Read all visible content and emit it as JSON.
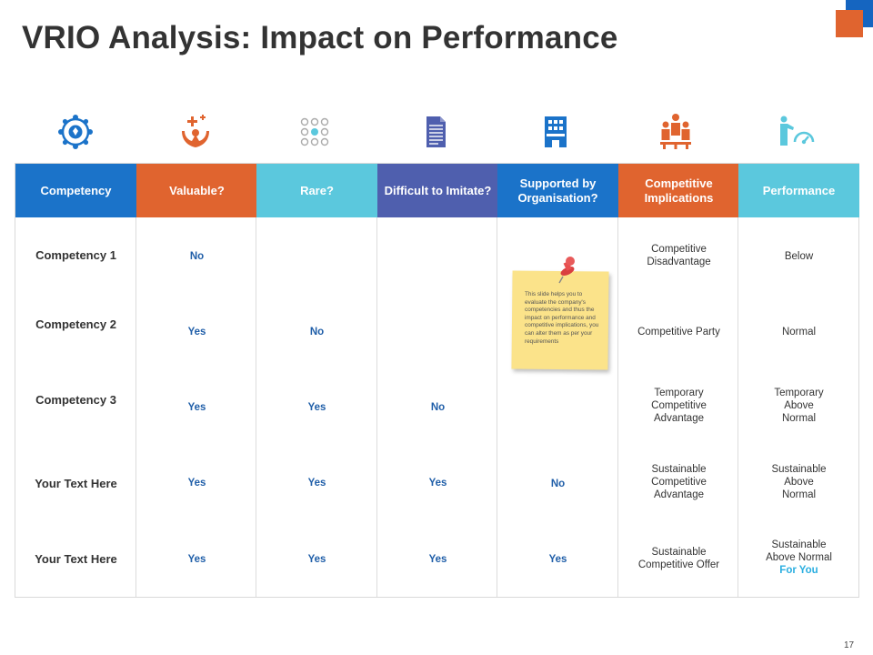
{
  "title": "VRIO Analysis: Impact on Performance",
  "page_number": "17",
  "colors": {
    "blue": "#1b73c9",
    "orange": "#e0642f",
    "cyan": "#5bc8dd",
    "indigo": "#4f5fae",
    "value_text": "#1f5ea8",
    "highlight_text": "#2aaee0"
  },
  "icons": [
    "badge-network-icon",
    "helping-hands-icon",
    "dot-grid-icon",
    "document-icon",
    "building-icon",
    "team-icon",
    "performance-gauge-icon"
  ],
  "headers": [
    {
      "label": "Competency",
      "color": "#1b73c9"
    },
    {
      "label": "Valuable?",
      "color": "#e0642f"
    },
    {
      "label": "Rare?",
      "color": "#5bc8dd"
    },
    {
      "label": "Difficult to Imitate?",
      "color": "#4f5fae"
    },
    {
      "label": "Supported by Organisation?",
      "color": "#1b73c9"
    },
    {
      "label": "Competitive Implications",
      "color": "#e0642f"
    },
    {
      "label": "Performance",
      "color": "#5bc8dd"
    }
  ],
  "rows": [
    {
      "name": "Competency 1",
      "valuable": "No",
      "rare": "",
      "difficult": "",
      "supported": "",
      "implications": [
        "Competitive",
        "Disadvantage"
      ],
      "performance": [
        "Below"
      ]
    },
    {
      "name": "Competency 2",
      "valuable": "Yes",
      "rare": "No",
      "difficult": "",
      "supported": "",
      "implications": [
        "Competitive Party"
      ],
      "performance": [
        "Normal"
      ]
    },
    {
      "name": "Competency 3",
      "valuable": "Yes",
      "rare": "Yes",
      "difficult": "No",
      "supported": "",
      "implications": [
        "Temporary",
        "Competitive",
        "Advantage"
      ],
      "performance": [
        "Temporary",
        "Above",
        "Normal"
      ]
    },
    {
      "name": "Your Text Here",
      "valuable": "Yes",
      "rare": "Yes",
      "difficult": "Yes",
      "supported": "No",
      "implications": [
        "Sustainable",
        "Competitive",
        "Advantage"
      ],
      "performance": [
        "Sustainable",
        "Above",
        "Normal"
      ]
    },
    {
      "name": "Your Text Here",
      "valuable": "Yes",
      "rare": "Yes",
      "difficult": "Yes",
      "supported": "Yes",
      "implications": [
        "Sustainable",
        "Competitive Offer"
      ],
      "performance": [
        "Sustainable",
        "Above Normal"
      ],
      "performance_highlight": "For You"
    }
  ],
  "sticky_note": "This slide helps you to evaluate the company's competencies and thus the impact on performance and competitive implications, you can alter them as per your requirements"
}
